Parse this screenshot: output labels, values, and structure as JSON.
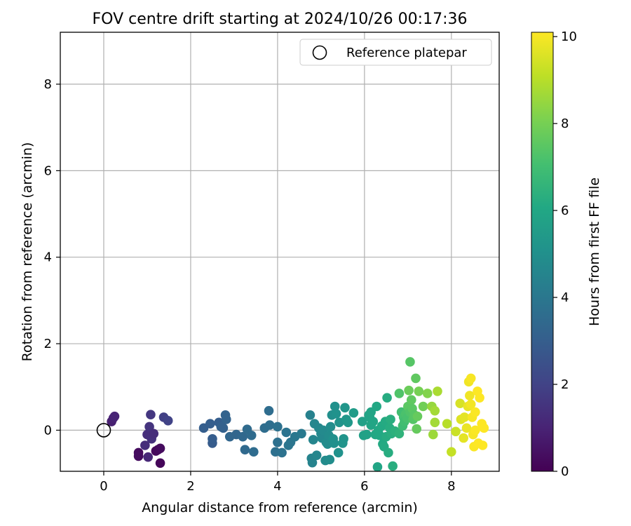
{
  "chart_data": {
    "type": "scatter",
    "title": "FOV centre drift starting at 2024/10/26 00:17:36",
    "xlabel": "Angular distance from reference (arcmin)",
    "ylabel": "Rotation from reference (arcmin)",
    "xlim": [
      -1.0,
      9.1
    ],
    "ylim": [
      -0.95,
      9.2
    ],
    "xticks": [
      0,
      2,
      4,
      6,
      8
    ],
    "yticks": [
      0,
      2,
      4,
      6,
      8
    ],
    "grid": true,
    "legend_placement": "top-right",
    "legend": [
      {
        "label": "Reference platepar",
        "marker": "open-circle"
      }
    ],
    "reference_point": {
      "x": 0,
      "y": 0
    },
    "colorbar": {
      "label": "Hours from first FF file",
      "colormap": "viridis",
      "range": [
        0,
        10.1
      ],
      "ticks": [
        0,
        2,
        4,
        6,
        8,
        10
      ]
    },
    "points": [
      {
        "x": 0.18,
        "y": 0.2,
        "hours": 0.9
      },
      {
        "x": 0.22,
        "y": 0.28,
        "hours": 0.95
      },
      {
        "x": 0.25,
        "y": 0.32,
        "hours": 1.0
      },
      {
        "x": 0.8,
        "y": -0.52,
        "hours": 0.3
      },
      {
        "x": 0.8,
        "y": -0.6,
        "hours": 0.35
      },
      {
        "x": 0.95,
        "y": -0.35,
        "hours": 1.3
      },
      {
        "x": 1.0,
        "y": -0.1,
        "hours": 1.35
      },
      {
        "x": 1.05,
        "y": 0.08,
        "hours": 1.5
      },
      {
        "x": 1.1,
        "y": -0.2,
        "hours": 1.4
      },
      {
        "x": 1.02,
        "y": -0.62,
        "hours": 1.1
      },
      {
        "x": 1.08,
        "y": 0.36,
        "hours": 1.6
      },
      {
        "x": 1.15,
        "y": -0.08,
        "hours": 1.3
      },
      {
        "x": 1.2,
        "y": -0.48,
        "hours": 0.2
      },
      {
        "x": 1.25,
        "y": -0.45,
        "hours": 0.25
      },
      {
        "x": 1.3,
        "y": -0.42,
        "hours": 0.3
      },
      {
        "x": 1.3,
        "y": -0.76,
        "hours": 0.15
      },
      {
        "x": 1.38,
        "y": 0.3,
        "hours": 1.9
      },
      {
        "x": 1.48,
        "y": 0.22,
        "hours": 2.0
      },
      {
        "x": 2.3,
        "y": 0.05,
        "hours": 3.0
      },
      {
        "x": 2.45,
        "y": 0.15,
        "hours": 3.0
      },
      {
        "x": 2.5,
        "y": -0.3,
        "hours": 2.9
      },
      {
        "x": 2.5,
        "y": -0.2,
        "hours": 2.95
      },
      {
        "x": 2.65,
        "y": 0.18,
        "hours": 3.0
      },
      {
        "x": 2.7,
        "y": 0.08,
        "hours": 3.1
      },
      {
        "x": 2.75,
        "y": 0.05,
        "hours": 3.1
      },
      {
        "x": 2.8,
        "y": 0.35,
        "hours": 3.2
      },
      {
        "x": 2.82,
        "y": 0.25,
        "hours": 3.2
      },
      {
        "x": 2.9,
        "y": -0.15,
        "hours": 3.3
      },
      {
        "x": 3.05,
        "y": -0.1,
        "hours": 3.3
      },
      {
        "x": 3.2,
        "y": -0.15,
        "hours": 3.4
      },
      {
        "x": 3.25,
        "y": -0.45,
        "hours": 3.45
      },
      {
        "x": 3.3,
        "y": 0.02,
        "hours": 3.5
      },
      {
        "x": 3.4,
        "y": -0.12,
        "hours": 3.5
      },
      {
        "x": 3.45,
        "y": -0.5,
        "hours": 3.55
      },
      {
        "x": 3.7,
        "y": 0.05,
        "hours": 3.6
      },
      {
        "x": 3.8,
        "y": 0.45,
        "hours": 3.6
      },
      {
        "x": 3.82,
        "y": 0.12,
        "hours": 3.65
      },
      {
        "x": 3.95,
        "y": -0.5,
        "hours": 3.7
      },
      {
        "x": 4.0,
        "y": -0.28,
        "hours": 3.7
      },
      {
        "x": 4.0,
        "y": 0.08,
        "hours": 3.75
      },
      {
        "x": 4.1,
        "y": -0.52,
        "hours": 3.8
      },
      {
        "x": 4.2,
        "y": -0.05,
        "hours": 3.85
      },
      {
        "x": 4.25,
        "y": -0.35,
        "hours": 3.9
      },
      {
        "x": 4.3,
        "y": -0.28,
        "hours": 3.9
      },
      {
        "x": 4.4,
        "y": -0.15,
        "hours": 4.0
      },
      {
        "x": 4.55,
        "y": -0.08,
        "hours": 4.1
      },
      {
        "x": 4.75,
        "y": 0.35,
        "hours": 4.4
      },
      {
        "x": 4.78,
        "y": -0.65,
        "hours": 4.5
      },
      {
        "x": 4.8,
        "y": -0.75,
        "hours": 4.5
      },
      {
        "x": 4.82,
        "y": -0.22,
        "hours": 4.55
      },
      {
        "x": 4.85,
        "y": 0.15,
        "hours": 4.6
      },
      {
        "x": 4.9,
        "y": -0.58,
        "hours": 4.6
      },
      {
        "x": 4.95,
        "y": 0.05,
        "hours": 4.65
      },
      {
        "x": 5.0,
        "y": -0.08,
        "hours": 4.7
      },
      {
        "x": 5.02,
        "y": -0.18,
        "hours": 4.7
      },
      {
        "x": 5.05,
        "y": 0.0,
        "hours": 4.75
      },
      {
        "x": 5.1,
        "y": -0.7,
        "hours": 4.8
      },
      {
        "x": 5.12,
        "y": -0.28,
        "hours": 4.8
      },
      {
        "x": 5.15,
        "y": -0.32,
        "hours": 4.85
      },
      {
        "x": 5.18,
        "y": -0.12,
        "hours": 4.85
      },
      {
        "x": 5.2,
        "y": -0.68,
        "hours": 4.9
      },
      {
        "x": 5.22,
        "y": 0.08,
        "hours": 4.9
      },
      {
        "x": 5.25,
        "y": 0.35,
        "hours": 4.95
      },
      {
        "x": 5.28,
        "y": -0.2,
        "hours": 5.0
      },
      {
        "x": 5.3,
        "y": -0.3,
        "hours": 5.0
      },
      {
        "x": 5.32,
        "y": 0.55,
        "hours": 5.05
      },
      {
        "x": 5.35,
        "y": 0.38,
        "hours": 5.1
      },
      {
        "x": 5.4,
        "y": -0.52,
        "hours": 5.1
      },
      {
        "x": 5.42,
        "y": 0.18,
        "hours": 5.15
      },
      {
        "x": 5.5,
        "y": -0.3,
        "hours": 5.2
      },
      {
        "x": 5.52,
        "y": -0.2,
        "hours": 5.2
      },
      {
        "x": 5.55,
        "y": 0.52,
        "hours": 5.25
      },
      {
        "x": 5.58,
        "y": 0.25,
        "hours": 5.3
      },
      {
        "x": 5.62,
        "y": 0.18,
        "hours": 5.35
      },
      {
        "x": 5.75,
        "y": 0.4,
        "hours": 5.5
      },
      {
        "x": 5.95,
        "y": 0.2,
        "hours": 5.7
      },
      {
        "x": 5.98,
        "y": -0.12,
        "hours": 5.7
      },
      {
        "x": 6.05,
        "y": -0.1,
        "hours": 5.75
      },
      {
        "x": 6.1,
        "y": 0.35,
        "hours": 5.8
      },
      {
        "x": 6.12,
        "y": 0.3,
        "hours": 5.85
      },
      {
        "x": 6.15,
        "y": 0.42,
        "hours": 5.9
      },
      {
        "x": 6.15,
        "y": 0.12,
        "hours": 5.9
      },
      {
        "x": 6.2,
        "y": 0.2,
        "hours": 5.95
      },
      {
        "x": 6.25,
        "y": -0.1,
        "hours": 6.0
      },
      {
        "x": 6.28,
        "y": 0.55,
        "hours": 6.0
      },
      {
        "x": 6.3,
        "y": -0.85,
        "hours": 5.95
      },
      {
        "x": 6.32,
        "y": 0.0,
        "hours": 6.05
      },
      {
        "x": 6.35,
        "y": -0.12,
        "hours": 6.05
      },
      {
        "x": 6.4,
        "y": 0.1,
        "hours": 6.1
      },
      {
        "x": 6.42,
        "y": -0.32,
        "hours": 6.1
      },
      {
        "x": 6.45,
        "y": -0.38,
        "hours": 6.15
      },
      {
        "x": 6.48,
        "y": 0.2,
        "hours": 6.15
      },
      {
        "x": 6.5,
        "y": -0.15,
        "hours": 6.2
      },
      {
        "x": 6.52,
        "y": 0.75,
        "hours": 6.2
      },
      {
        "x": 6.55,
        "y": -0.52,
        "hours": 6.25
      },
      {
        "x": 6.58,
        "y": 0.05,
        "hours": 6.25
      },
      {
        "x": 6.6,
        "y": 0.25,
        "hours": 6.3
      },
      {
        "x": 6.62,
        "y": -0.08,
        "hours": 6.3
      },
      {
        "x": 6.65,
        "y": -0.83,
        "hours": 6.3
      },
      {
        "x": 6.7,
        "y": -0.02,
        "hours": 6.4
      },
      {
        "x": 6.8,
        "y": -0.08,
        "hours": 6.5
      },
      {
        "x": 6.8,
        "y": 0.85,
        "hours": 7.3
      },
      {
        "x": 6.85,
        "y": 0.42,
        "hours": 7.0
      },
      {
        "x": 6.88,
        "y": 0.1,
        "hours": 6.9
      },
      {
        "x": 6.9,
        "y": 0.3,
        "hours": 7.1
      },
      {
        "x": 6.92,
        "y": 0.2,
        "hours": 7.0
      },
      {
        "x": 6.95,
        "y": 0.38,
        "hours": 7.2
      },
      {
        "x": 6.98,
        "y": 0.28,
        "hours": 7.15
      },
      {
        "x": 7.0,
        "y": 0.55,
        "hours": 7.5
      },
      {
        "x": 7.02,
        "y": 0.92,
        "hours": 7.8
      },
      {
        "x": 7.05,
        "y": 1.58,
        "hours": 7.4
      },
      {
        "x": 7.05,
        "y": 0.42,
        "hours": 7.3
      },
      {
        "x": 7.08,
        "y": 0.7,
        "hours": 7.6
      },
      {
        "x": 7.1,
        "y": 0.5,
        "hours": 7.5
      },
      {
        "x": 7.12,
        "y": 0.25,
        "hours": 7.4
      },
      {
        "x": 7.15,
        "y": 0.35,
        "hours": 7.45
      },
      {
        "x": 7.18,
        "y": 1.2,
        "hours": 7.6
      },
      {
        "x": 7.2,
        "y": 0.03,
        "hours": 7.7
      },
      {
        "x": 7.22,
        "y": 0.32,
        "hours": 7.7
      },
      {
        "x": 7.25,
        "y": 0.9,
        "hours": 8.0
      },
      {
        "x": 7.35,
        "y": 0.55,
        "hours": 7.9
      },
      {
        "x": 7.45,
        "y": 0.85,
        "hours": 8.2
      },
      {
        "x": 7.55,
        "y": 0.55,
        "hours": 8.5
      },
      {
        "x": 7.58,
        "y": -0.1,
        "hours": 8.6
      },
      {
        "x": 7.62,
        "y": 0.45,
        "hours": 8.7
      },
      {
        "x": 7.62,
        "y": 0.18,
        "hours": 8.7
      },
      {
        "x": 7.68,
        "y": 0.9,
        "hours": 8.8
      },
      {
        "x": 7.9,
        "y": 0.15,
        "hours": 9.0
      },
      {
        "x": 8.0,
        "y": -0.5,
        "hours": 9.2
      },
      {
        "x": 8.1,
        "y": -0.03,
        "hours": 9.3
      },
      {
        "x": 8.2,
        "y": 0.62,
        "hours": 9.5
      },
      {
        "x": 8.22,
        "y": 0.25,
        "hours": 9.6
      },
      {
        "x": 8.28,
        "y": -0.18,
        "hours": 9.7
      },
      {
        "x": 8.3,
        "y": 0.3,
        "hours": 9.7
      },
      {
        "x": 8.35,
        "y": 0.05,
        "hours": 9.8
      },
      {
        "x": 8.38,
        "y": 0.55,
        "hours": 9.8
      },
      {
        "x": 8.4,
        "y": 1.12,
        "hours": 9.9
      },
      {
        "x": 8.42,
        "y": 0.8,
        "hours": 9.9
      },
      {
        "x": 8.45,
        "y": 1.2,
        "hours": 10.0
      },
      {
        "x": 8.45,
        "y": 0.6,
        "hours": 9.95
      },
      {
        "x": 8.48,
        "y": 0.3,
        "hours": 10.0
      },
      {
        "x": 8.5,
        "y": -0.1,
        "hours": 10.0
      },
      {
        "x": 8.52,
        "y": -0.38,
        "hours": 10.05
      },
      {
        "x": 8.55,
        "y": 0.42,
        "hours": 10.05
      },
      {
        "x": 8.55,
        "y": 0.0,
        "hours": 10.05
      },
      {
        "x": 8.6,
        "y": 0.9,
        "hours": 10.1
      },
      {
        "x": 8.62,
        "y": -0.3,
        "hours": 10.1
      },
      {
        "x": 8.65,
        "y": 0.75,
        "hours": 10.1
      },
      {
        "x": 8.7,
        "y": 0.15,
        "hours": 10.1
      },
      {
        "x": 8.72,
        "y": -0.35,
        "hours": 10.1
      },
      {
        "x": 8.75,
        "y": 0.05,
        "hours": 10.1
      }
    ]
  }
}
